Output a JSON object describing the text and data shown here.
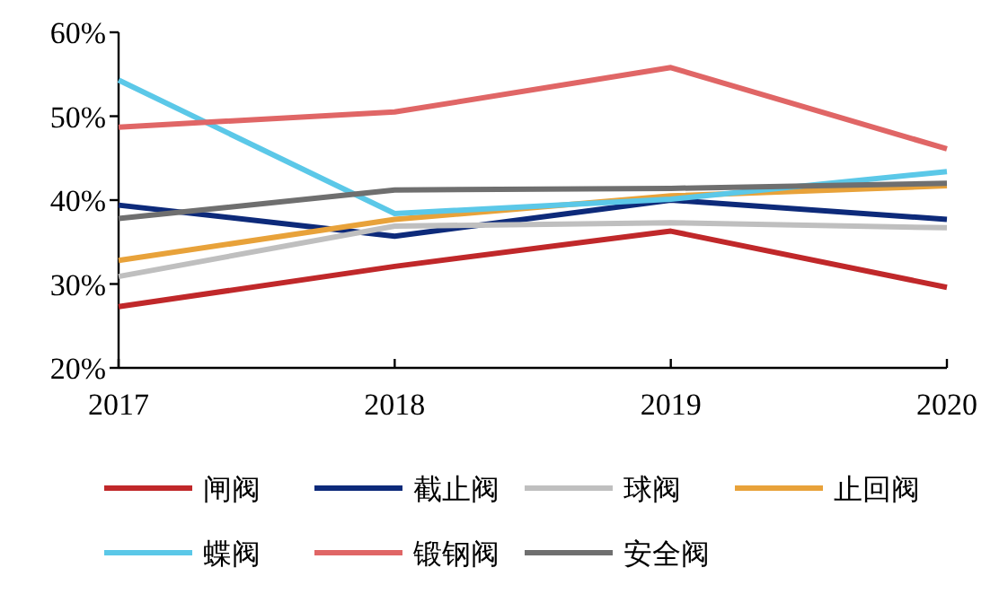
{
  "chart_data": {
    "type": "line",
    "categories": [
      "2017",
      "2018",
      "2019",
      "2020"
    ],
    "ylim": [
      20,
      60
    ],
    "yticks": [
      {
        "value": 20,
        "label": "20%"
      },
      {
        "value": 30,
        "label": "30%"
      },
      {
        "value": 40,
        "label": "40%"
      },
      {
        "value": 50,
        "label": "50%"
      },
      {
        "value": 60,
        "label": "60%"
      }
    ],
    "grid": false,
    "legend": "bottom",
    "marker": "none",
    "line_style": "solid",
    "series": [
      {
        "name": "闸阀",
        "color": "#c0282a",
        "values": [
          27.3,
          32.1,
          36.3,
          29.6
        ]
      },
      {
        "name": "截止阀",
        "color": "#0d2a7a",
        "values": [
          39.4,
          35.7,
          40.0,
          37.7
        ]
      },
      {
        "name": "球阀",
        "color": "#bfbfbf",
        "values": [
          30.9,
          36.9,
          37.3,
          36.7
        ]
      },
      {
        "name": "止回阀",
        "color": "#e8a23a",
        "values": [
          32.8,
          37.7,
          40.5,
          41.7
        ]
      },
      {
        "name": "蝶阀",
        "color": "#5bc8e8",
        "values": [
          54.3,
          38.4,
          40.1,
          43.4
        ]
      },
      {
        "name": "锻钢阀",
        "color": "#e06666",
        "values": [
          48.7,
          50.5,
          55.8,
          46.1
        ]
      },
      {
        "name": "安全阀",
        "color": "#6f6f6f",
        "values": [
          37.8,
          41.2,
          41.4,
          42.0
        ]
      }
    ]
  }
}
